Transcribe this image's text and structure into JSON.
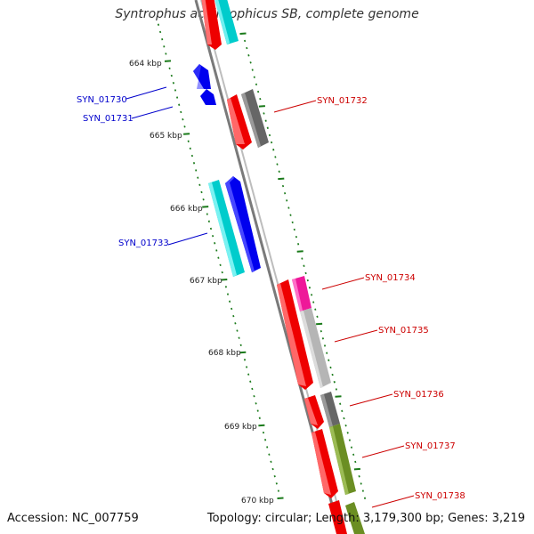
{
  "title": "Syntrophus aciditrophicus SB, complete genome",
  "footer": {
    "accession": "Accession: NC_007759",
    "topology": "Topology: circular; Length: 3,179,300 bp; Genes: 3,219"
  },
  "colors": {
    "reverse_label": "#0000cc",
    "forward_label": "#cc0000",
    "backbone": "#888888",
    "ticks": "#1a7a1a"
  },
  "kbp_labels": [
    "664 kbp",
    "665 kbp",
    "666 kbp",
    "667 kbp",
    "668 kbp",
    "669 kbp",
    "670 kbp"
  ],
  "genes": [
    {
      "name": "SYN_01730",
      "strand": "reverse",
      "color": "#0000ee"
    },
    {
      "name": "SYN_01731",
      "strand": "reverse",
      "color": "#0000ee"
    },
    {
      "name": "SYN_01733",
      "strand": "reverse",
      "color": "#0000ee"
    },
    {
      "name": "SYN_01732",
      "strand": "forward",
      "color": "#ee0000"
    },
    {
      "name": "SYN_01734",
      "strand": "forward",
      "color": "#ee0000"
    },
    {
      "name": "SYN_01735",
      "strand": "forward",
      "color": "#ee0000"
    },
    {
      "name": "SYN_01736",
      "strand": "forward",
      "color": "#ee0000"
    },
    {
      "name": "SYN_01737",
      "strand": "forward",
      "color": "#ee0000"
    },
    {
      "name": "SYN_01738",
      "strand": "forward",
      "color": "#ee0000"
    }
  ]
}
